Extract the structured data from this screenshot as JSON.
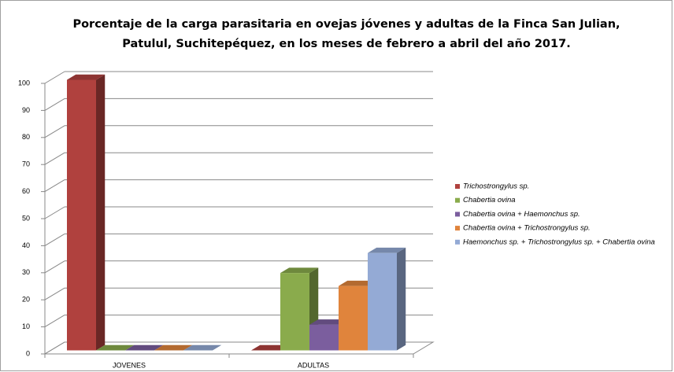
{
  "chart_data": {
    "type": "bar3d",
    "title": [
      "Porcentaje de la carga parasitaria en ovejas jóvenes y adultas de la Finca San Julian,",
      "Patulul, Suchitepéquez, en los meses de febrero a abril del año 2017."
    ],
    "categories": [
      "JOVENES",
      "ADULTAS"
    ],
    "series": [
      {
        "name": "Trichostrongylus sp.",
        "color": "#b0413e",
        "values": [
          100,
          0
        ]
      },
      {
        "name": "Chabertia ovina",
        "color": "#8aab4c",
        "values": [
          0,
          28.6
        ]
      },
      {
        "name": "Chabertia ovina + Haemonchus sp.",
        "color": "#7b5e9e",
        "values": [
          0,
          9.5
        ]
      },
      {
        "name": "Chabertia ovina + Trichostrongylus sp.",
        "color": "#e0843c",
        "values": [
          0,
          23.8
        ]
      },
      {
        "name": "Haemonchus sp. + Trichostrongylus sp. + Chabertia ovina",
        "color": "#94aad5",
        "values": [
          0,
          36
        ]
      }
    ],
    "ylim": [
      0,
      100
    ],
    "yticks": [
      0,
      10,
      20,
      30,
      40,
      50,
      60,
      70,
      80,
      90,
      100
    ],
    "grid": true,
    "legend": "right"
  }
}
